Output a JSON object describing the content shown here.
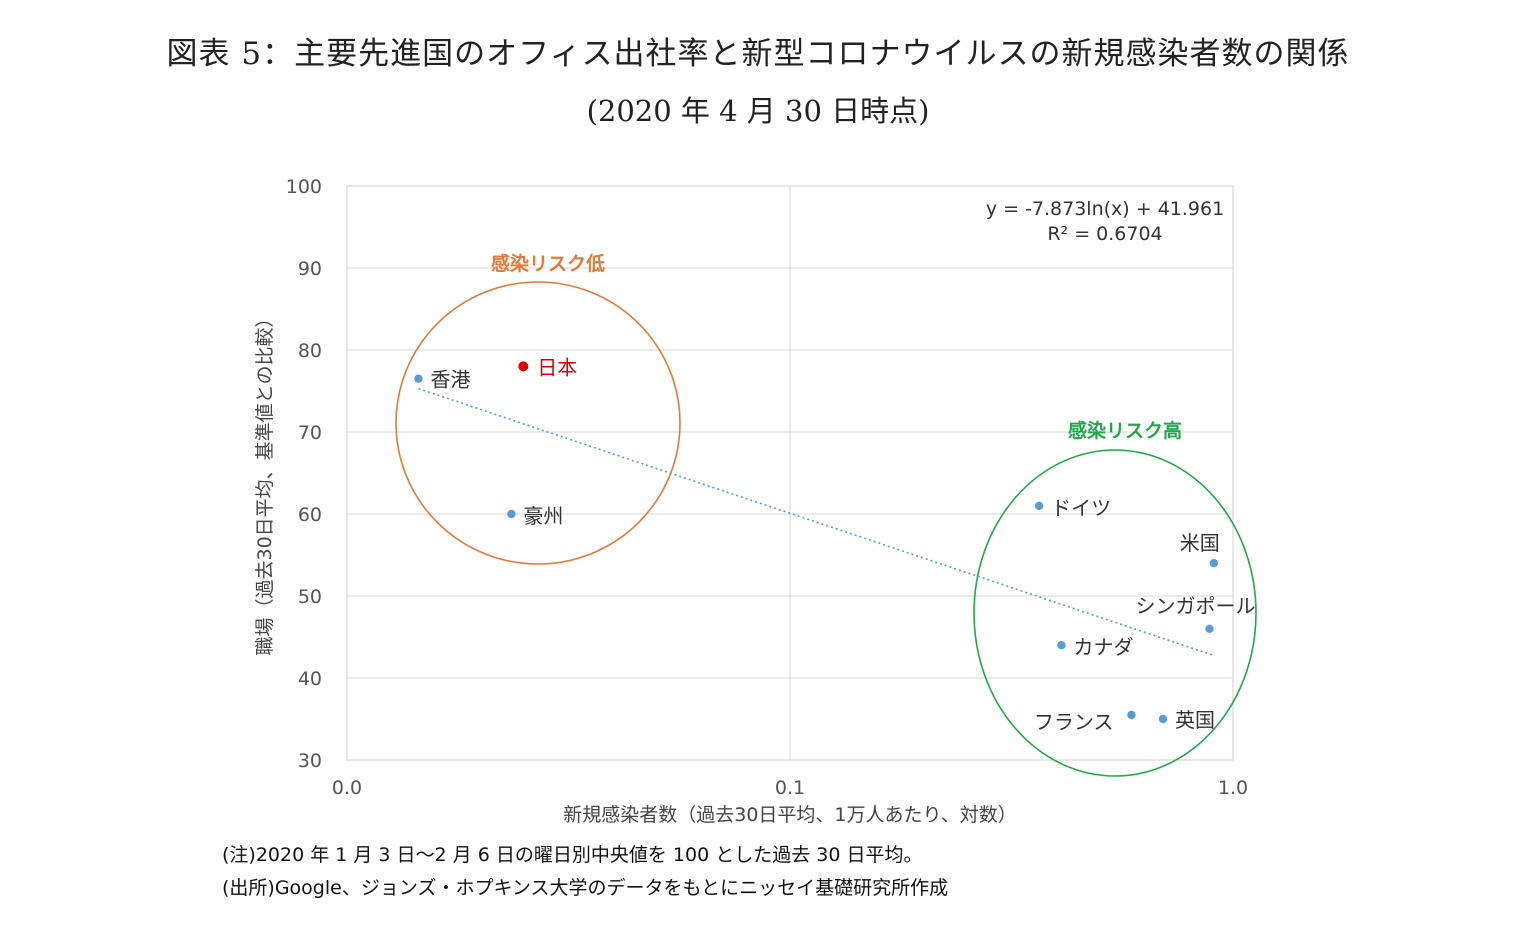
{
  "title_line1": "図表 5：主要先進国のオフィス出社率と新型コロナウイルスの新規感染者数の関係",
  "title_line2": "(2020 年 4 月 30 日時点)",
  "note_line1": "(注)2020 年 1 月 3 日～2 月 6 日の曜日別中央値を 100 とした過去 30 日平均。",
  "note_line2": "(出所)Google、ジョンズ・ホプキンス大学のデータをもとにニッセイ基礎研究所作成",
  "chart_data": {
    "type": "scatter",
    "xlabel": "新規感染者数（過去30日平均、1万人あたり、対数）",
    "ylabel": "職場（過去30日平均、基準値との比較）",
    "x_scale": "log",
    "xlim": [
      0.01,
      1.0
    ],
    "ylim": [
      30,
      100
    ],
    "x_ticks": [
      0.01,
      0.1,
      1.0
    ],
    "x_tick_labels": [
      "0.0",
      "0.1",
      "1.0"
    ],
    "y_ticks": [
      30,
      40,
      50,
      60,
      70,
      80,
      90,
      100
    ],
    "grid": true,
    "points": [
      {
        "label": "香港",
        "x": 0.0145,
        "y": 76.5,
        "color": "#5b9bd5"
      },
      {
        "label": "日本",
        "x": 0.025,
        "y": 78.0,
        "color": "#e00000"
      },
      {
        "label": "豪州",
        "x": 0.0235,
        "y": 60.0,
        "color": "#5b9bd5"
      },
      {
        "label": "ドイツ",
        "x": 0.365,
        "y": 61.0,
        "color": "#5b9bd5"
      },
      {
        "label": "米国",
        "x": 0.905,
        "y": 54.0,
        "color": "#5b9bd5"
      },
      {
        "label": "シンガポール",
        "x": 0.885,
        "y": 46.0,
        "color": "#5b9bd5"
      },
      {
        "label": "カナダ",
        "x": 0.41,
        "y": 44.0,
        "color": "#5b9bd5"
      },
      {
        "label": "フランス",
        "x": 0.59,
        "y": 35.5,
        "color": "#5b9bd5"
      },
      {
        "label": "英国",
        "x": 0.695,
        "y": 35.0,
        "color": "#5b9bd5"
      }
    ],
    "trendline": {
      "equation": "y = -7.873ln(x) + 41.961",
      "r2": "R² = 0.6704",
      "a": -7.873,
      "b": 41.961,
      "x_range": [
        0.0145,
        0.905
      ],
      "color": "#5b9bd5",
      "style": "dotted"
    },
    "annotations": [
      {
        "text": "感染リスク低",
        "color": "#e07b39"
      },
      {
        "text": "感染リスク高",
        "color": "#20a84a"
      }
    ]
  }
}
